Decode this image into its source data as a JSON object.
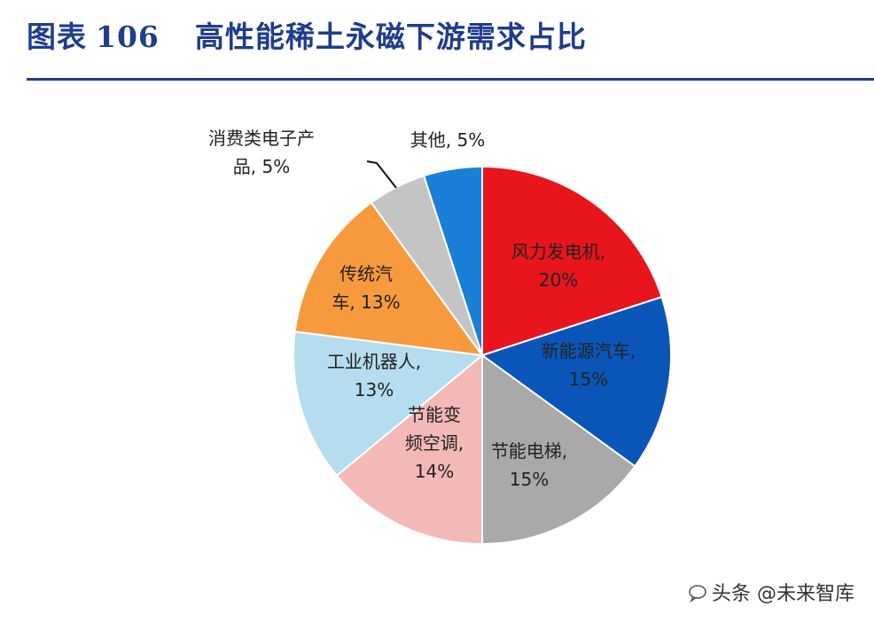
{
  "header": {
    "title_prefix": "图表",
    "title_number": "106",
    "title_text": "高性能稀土永磁下游需求占比"
  },
  "chart_data": {
    "type": "pie",
    "title": "高性能稀土永磁下游需求占比",
    "slices": [
      {
        "label_lines": [
          "风力发电机,",
          "20%"
        ],
        "name": "风力发电机",
        "value": 20,
        "color": "#e8151c"
      },
      {
        "label_lines": [
          "新能源汽车,",
          "15%"
        ],
        "name": "新能源汽车",
        "value": 15,
        "color": "#0a56b8"
      },
      {
        "label_lines": [
          "节能电梯,",
          "15%"
        ],
        "name": "节能电梯",
        "value": 15,
        "color": "#a9a9a9"
      },
      {
        "label_lines": [
          "节能变",
          "频空调,",
          "14%"
        ],
        "name": "节能变频空调",
        "value": 14,
        "color": "#f2b9b6"
      },
      {
        "label_lines": [
          "工业机器人,",
          "13%"
        ],
        "name": "工业机器人",
        "value": 13,
        "color": "#b5dcef"
      },
      {
        "label_lines": [
          "传统汽",
          "车, 13%"
        ],
        "name": "传统汽车",
        "value": 13,
        "color": "#f79a3e"
      },
      {
        "label_lines": [
          "消费类电子产",
          "品, 5%"
        ],
        "name": "消费类电子产品",
        "value": 5,
        "color": "#c4c4c4"
      },
      {
        "label_lines": [
          "其他, 5%"
        ],
        "name": "其他",
        "value": 5,
        "color": "#1a7fd6"
      }
    ]
  },
  "watermark": {
    "text": "头条 @未来智库"
  }
}
